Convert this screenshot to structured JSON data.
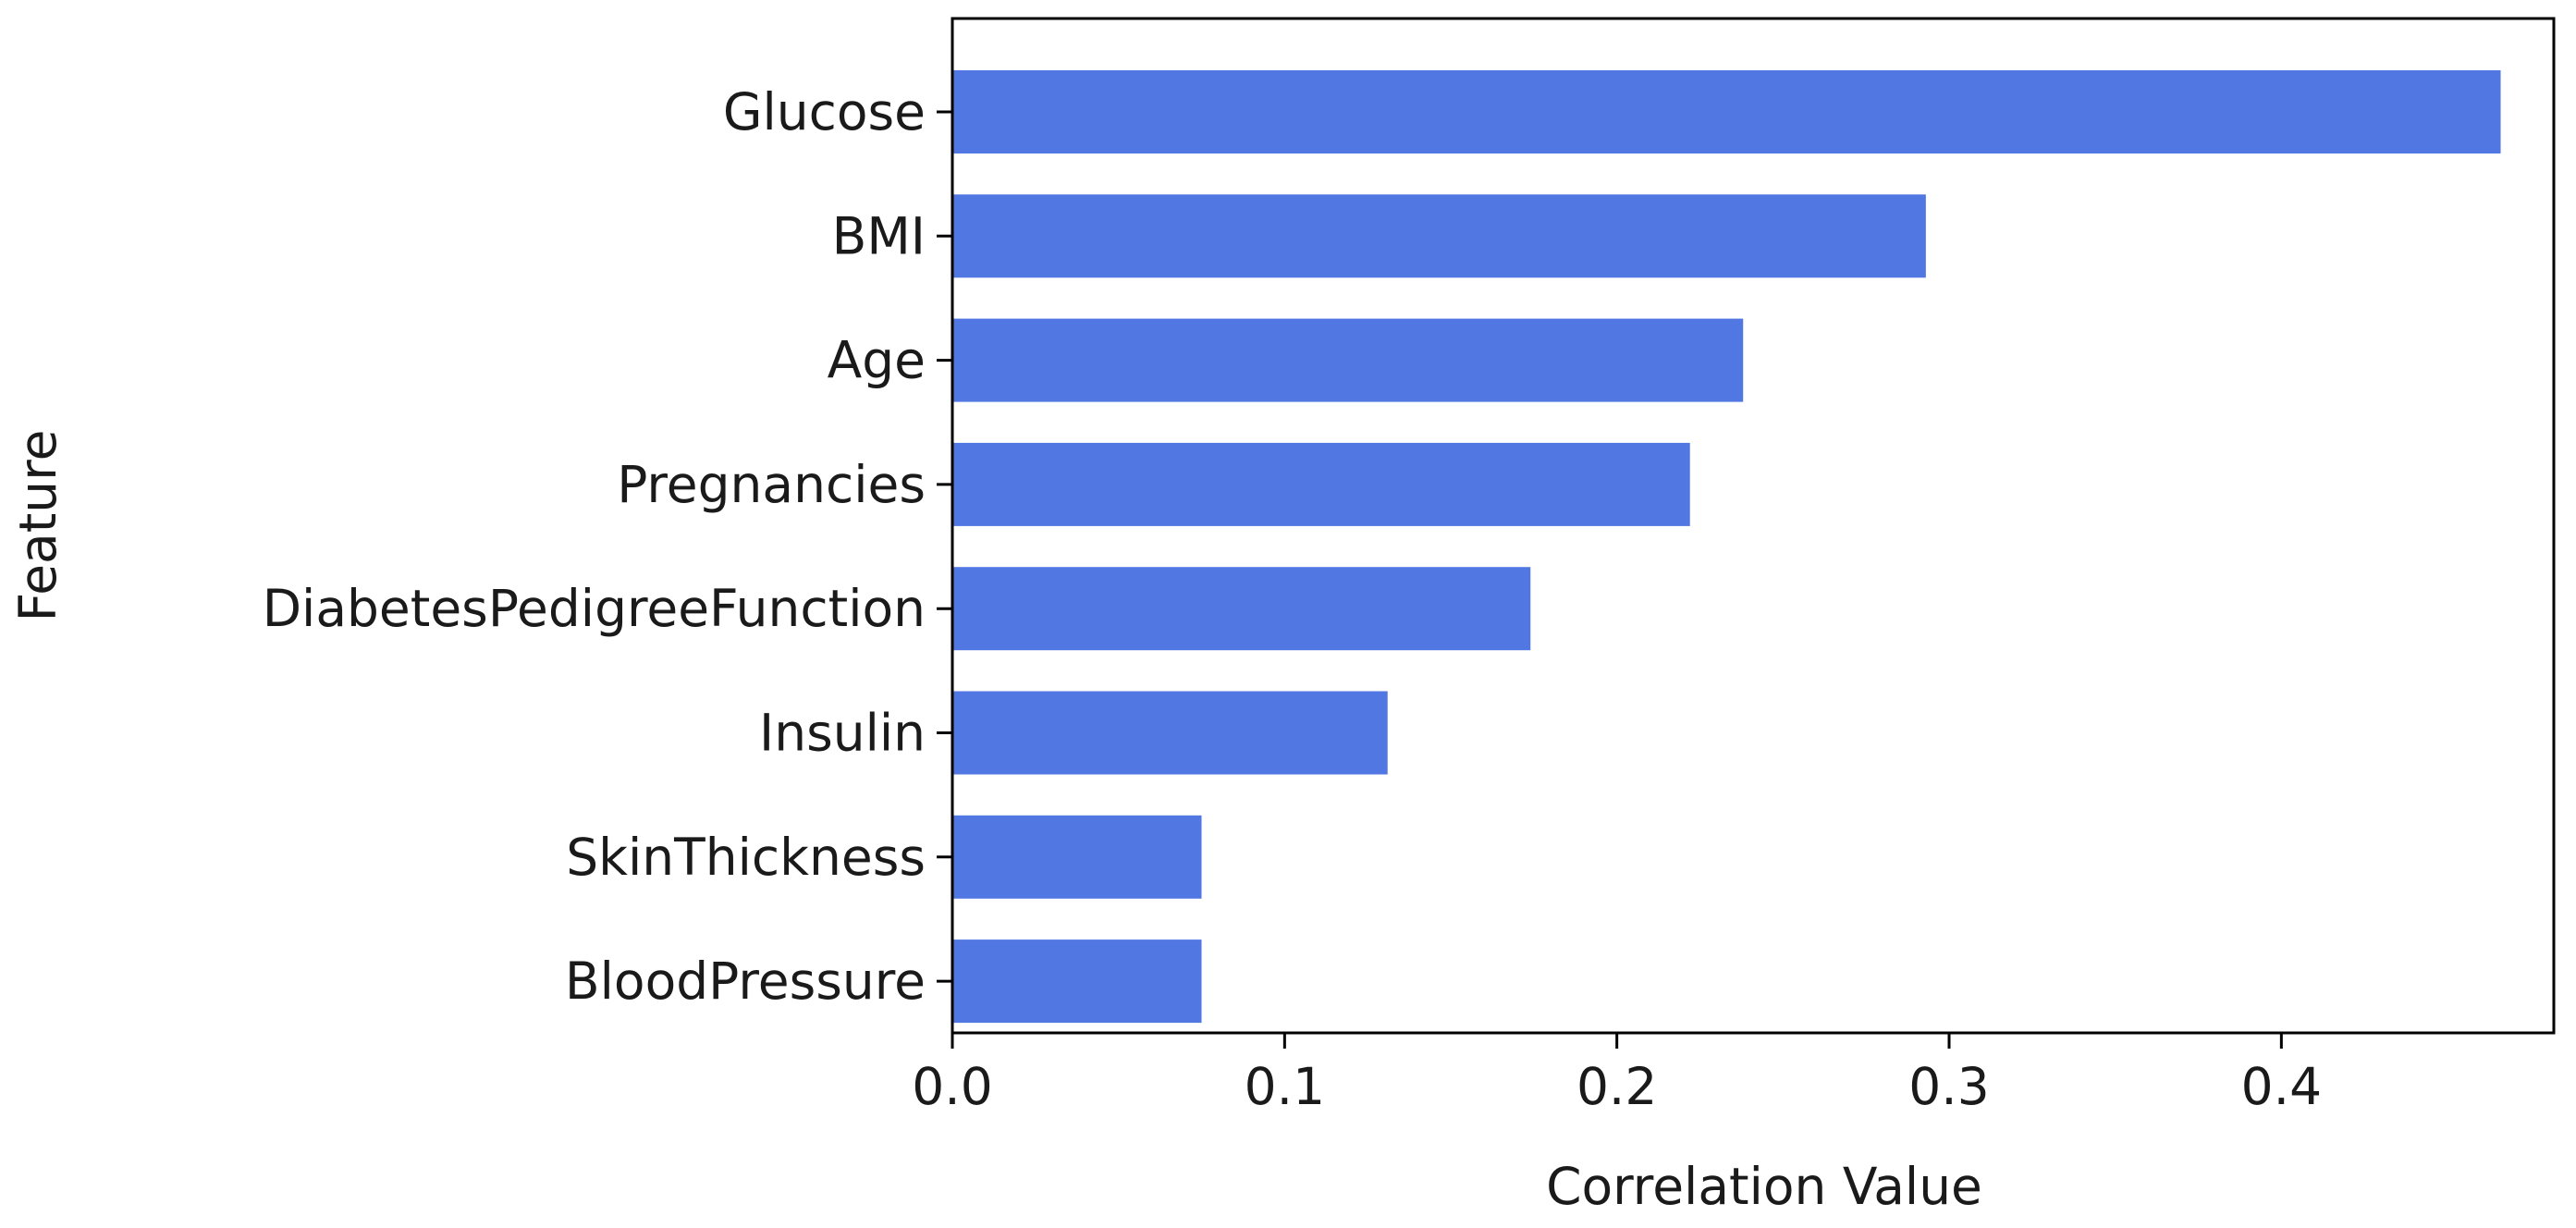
{
  "chart_data": {
    "type": "bar",
    "orientation": "horizontal",
    "title": "",
    "xlabel": "Correlation Value",
    "ylabel": "Feature",
    "categories": [
      "Glucose",
      "BMI",
      "Age",
      "Pregnancies",
      "DiabetesPedigreeFunction",
      "Insulin",
      "SkinThickness",
      "BloodPressure"
    ],
    "values": [
      0.466,
      0.293,
      0.238,
      0.222,
      0.174,
      0.131,
      0.075,
      0.075
    ],
    "xlim": [
      0,
      0.482
    ],
    "xticks": [
      0.0,
      0.1,
      0.2,
      0.3,
      0.4
    ],
    "xtick_labels": [
      "0.0",
      "0.1",
      "0.2",
      "0.3",
      "0.4"
    ],
    "grid": false,
    "legend": "none",
    "colors": {
      "bar": "#5177e2",
      "axes": "#000000",
      "text": "#1a1a1a"
    }
  }
}
